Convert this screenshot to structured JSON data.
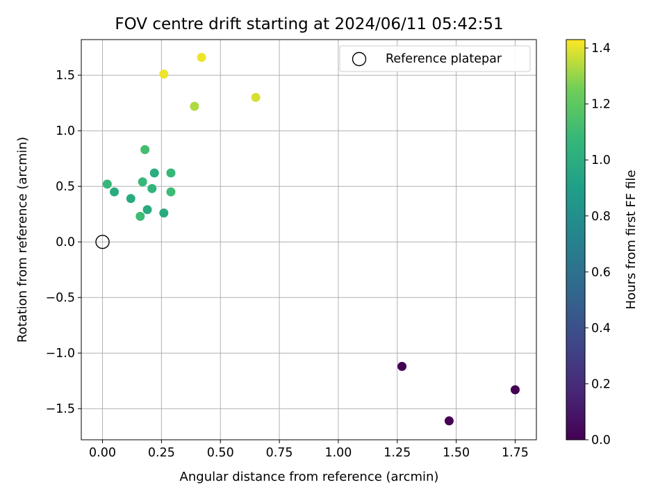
{
  "chart_data": {
    "type": "scatter",
    "title": "FOV centre drift starting at 2024/06/11 05:42:51",
    "xlabel": "Angular distance from reference (arcmin)",
    "ylabel": "Rotation from reference (arcmin)",
    "xlim": [
      -0.09,
      1.84
    ],
    "ylim": [
      -1.78,
      1.82
    ],
    "xticks": [
      0.0,
      0.25,
      0.5,
      0.75,
      1.0,
      1.25,
      1.5,
      1.75
    ],
    "xtick_labels": [
      "0.00",
      "0.25",
      "0.50",
      "0.75",
      "1.00",
      "1.25",
      "1.50",
      "1.75"
    ],
    "yticks": [
      -1.5,
      -1.0,
      -0.5,
      0.0,
      0.5,
      1.0,
      1.5
    ],
    "ytick_labels": [
      "−1.5",
      "−1.0",
      "−0.5",
      "0.0",
      "0.5",
      "1.0",
      "1.5"
    ],
    "grid": true,
    "legend": {
      "entries": [
        "Reference platepar"
      ],
      "placement": "top-right",
      "marker": "open-circle"
    },
    "reference_point": {
      "x": 0.0,
      "y": 0.0
    },
    "colorbar": {
      "label": "Hours from first FF file",
      "lim": [
        0.0,
        1.43
      ],
      "ticks": [
        0.0,
        0.2,
        0.4,
        0.6,
        0.8,
        1.0,
        1.2,
        1.4
      ],
      "tick_labels": [
        "0.0",
        "0.2",
        "0.4",
        "0.6",
        "0.8",
        "1.0",
        "1.2",
        "1.4"
      ],
      "colormap": "viridis"
    },
    "series": [
      {
        "points": [
          {
            "x": 1.27,
            "y": -1.12,
            "c": 0.0
          },
          {
            "x": 1.47,
            "y": -1.61,
            "c": 0.0
          },
          {
            "x": 1.75,
            "y": -1.33,
            "c": 0.0
          },
          {
            "x": 0.02,
            "y": 0.52,
            "c": 1.08
          },
          {
            "x": 0.05,
            "y": 0.45,
            "c": 0.98
          },
          {
            "x": 0.12,
            "y": 0.39,
            "c": 0.98
          },
          {
            "x": 0.17,
            "y": 0.54,
            "c": 1.08
          },
          {
            "x": 0.18,
            "y": 0.83,
            "c": 1.12
          },
          {
            "x": 0.19,
            "y": 0.29,
            "c": 0.98
          },
          {
            "x": 0.21,
            "y": 0.48,
            "c": 1.05
          },
          {
            "x": 0.22,
            "y": 0.62,
            "c": 1.0
          },
          {
            "x": 0.16,
            "y": 0.23,
            "c": 1.1
          },
          {
            "x": 0.26,
            "y": 0.26,
            "c": 0.98
          },
          {
            "x": 0.29,
            "y": 0.62,
            "c": 1.08
          },
          {
            "x": 0.29,
            "y": 0.45,
            "c": 1.1
          },
          {
            "x": 0.26,
            "y": 1.51,
            "c": 1.41
          },
          {
            "x": 0.42,
            "y": 1.66,
            "c": 1.41
          },
          {
            "x": 0.39,
            "y": 1.22,
            "c": 1.33
          },
          {
            "x": 0.65,
            "y": 1.3,
            "c": 1.38
          }
        ]
      }
    ]
  }
}
